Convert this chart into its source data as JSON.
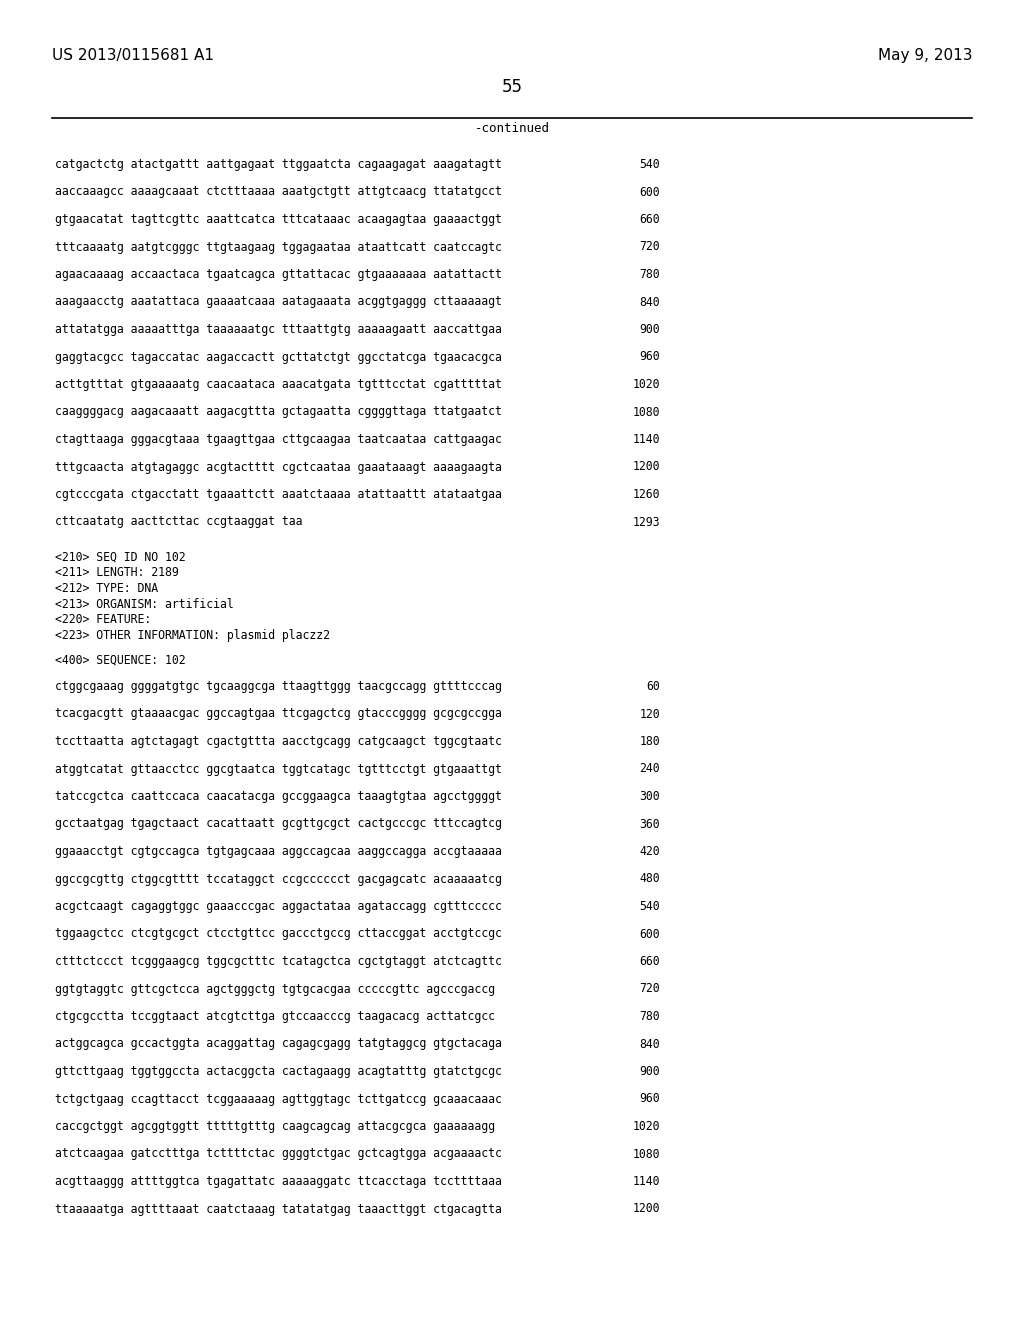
{
  "patent_number": "US 2013/0115681 A1",
  "date": "May 9, 2013",
  "page_number": "55",
  "continued_label": "-continued",
  "background_color": "#ffffff",
  "text_color": "#000000",
  "sequence_lines_part1": [
    [
      "catgactctg atactgattt aattgagaat ttggaatcta cagaagagat aaagatagtt",
      "540"
    ],
    [
      "aaccaaagcc aaaagcaaat ctctttaaaa aaatgctgtt attgtcaacg ttatatgcct",
      "600"
    ],
    [
      "gtgaacatat tagttcgttc aaattcatca tttcataaac acaagagtaa gaaaactggt",
      "660"
    ],
    [
      "tttcaaaatg aatgtcgggc ttgtaagaag tggagaataa ataattcatt caatccagtc",
      "720"
    ],
    [
      "agaacaaaag accaactaca tgaatcagca gttattacac gtgaaaaaaa aatattactt",
      "780"
    ],
    [
      "aaagaacctg aaatattaca gaaaatcaaa aatagaaata acggtgaggg cttaaaaagt",
      "840"
    ],
    [
      "attatatgga aaaaatttga taaaaaatgc tttaattgtg aaaaagaatt aaccattgaa",
      "900"
    ],
    [
      "gaggtacgcc tagaccatac aagaccactt gcttatctgt ggcctatcga tgaacacgca",
      "960"
    ],
    [
      "acttgtttat gtgaaaaatg caacaataca aaacatgata tgtttcctat cgatttttat",
      "1020"
    ],
    [
      "caaggggacg aagacaaatt aagacgttta gctagaatta cggggttaga ttatgaatct",
      "1080"
    ],
    [
      "ctagttaaga gggacgtaaa tgaagttgaa cttgcaagaa taatcaataa cattgaagac",
      "1140"
    ],
    [
      "tttgcaacta atgtagaggc acgtactttt cgctcaataa gaaataaagt aaaagaagta",
      "1200"
    ],
    [
      "cgtcccgata ctgacctatt tgaaattctt aaatctaaaa atattaattt atataatgaa",
      "1260"
    ],
    [
      "cttcaatatg aacttcttac ccgtaaggat taa",
      "1293"
    ]
  ],
  "metadata_lines": [
    "<210> SEQ ID NO 102",
    "<211> LENGTH: 2189",
    "<212> TYPE: DNA",
    "<213> ORGANISM: artificial",
    "<220> FEATURE:",
    "<223> OTHER INFORMATION: plasmid placzz2"
  ],
  "sequence_header": "<400> SEQUENCE: 102",
  "sequence_lines_part2": [
    [
      "ctggcgaaag ggggatgtgc tgcaaggcga ttaagttggg taacgccagg gttttcccag",
      "60"
    ],
    [
      "tcacgacgtt gtaaaacgac ggccagtgaa ttcgagctcg gtacccgggg gcgcgccgga",
      "120"
    ],
    [
      "tccttaatta agtctagagt cgactgttta aacctgcagg catgcaagct tggcgtaatc",
      "180"
    ],
    [
      "atggtcatat gttaacctcc ggcgtaatca tggtcatagc tgtttcctgt gtgaaattgt",
      "240"
    ],
    [
      "tatccgctca caattccaca caacatacga gccggaagca taaagtgtaa agcctggggt",
      "300"
    ],
    [
      "gcctaatgag tgagctaact cacattaatt gcgttgcgct cactgcccgc tttccagtcg",
      "360"
    ],
    [
      "ggaaacctgt cgtgccagca tgtgagcaaa aggccagcaa aaggccagga accgtaaaaa",
      "420"
    ],
    [
      "ggccgcgttg ctggcgtttt tccataggct ccgcccccct gacgagcatc acaaaaatcg",
      "480"
    ],
    [
      "acgctcaagt cagaggtggc gaaacccgac aggactataa agataccagg cgtttccccc",
      "540"
    ],
    [
      "tggaagctcc ctcgtgcgct ctcctgttcc gaccctgccg cttaccggat acctgtccgc",
      "600"
    ],
    [
      "ctttctccct tcgggaagcg tggcgctttc tcatagctca cgctgtaggt atctcagttc",
      "660"
    ],
    [
      "ggtgtaggtc gttcgctcca agctgggctg tgtgcacgaa cccccgttc agcccgaccg",
      "720"
    ],
    [
      "ctgcgcctta tccggtaact atcgtcttga gtccaacccg taagacacg acttatcgcc",
      "780"
    ],
    [
      "actggcagca gccactggta acaggattag cagagcgagg tatgtaggcg gtgctacaga",
      "840"
    ],
    [
      "gttcttgaag tggtggccta actacggcta cactagaagg acagtatttg gtatctgcgc",
      "900"
    ],
    [
      "tctgctgaag ccagttacct tcggaaaaag agttggtagc tcttgatccg gcaaacaaac",
      "960"
    ],
    [
      "caccgctggt agcggtggtt tttttgtttg caagcagcag attacgcgca gaaaaaagg",
      "1020"
    ],
    [
      "atctcaagaa gatcctttga tcttttctac ggggtctgac gctcagtgga acgaaaactc",
      "1080"
    ],
    [
      "acgttaaggg attttggtca tgagattatc aaaaaggatc ttcacctaga tccttttaaa",
      "1140"
    ],
    [
      "ttaaaaatga agttttaaat caatctaaag tatatatgag taaacttggt ctgacagtta",
      "1200"
    ]
  ]
}
